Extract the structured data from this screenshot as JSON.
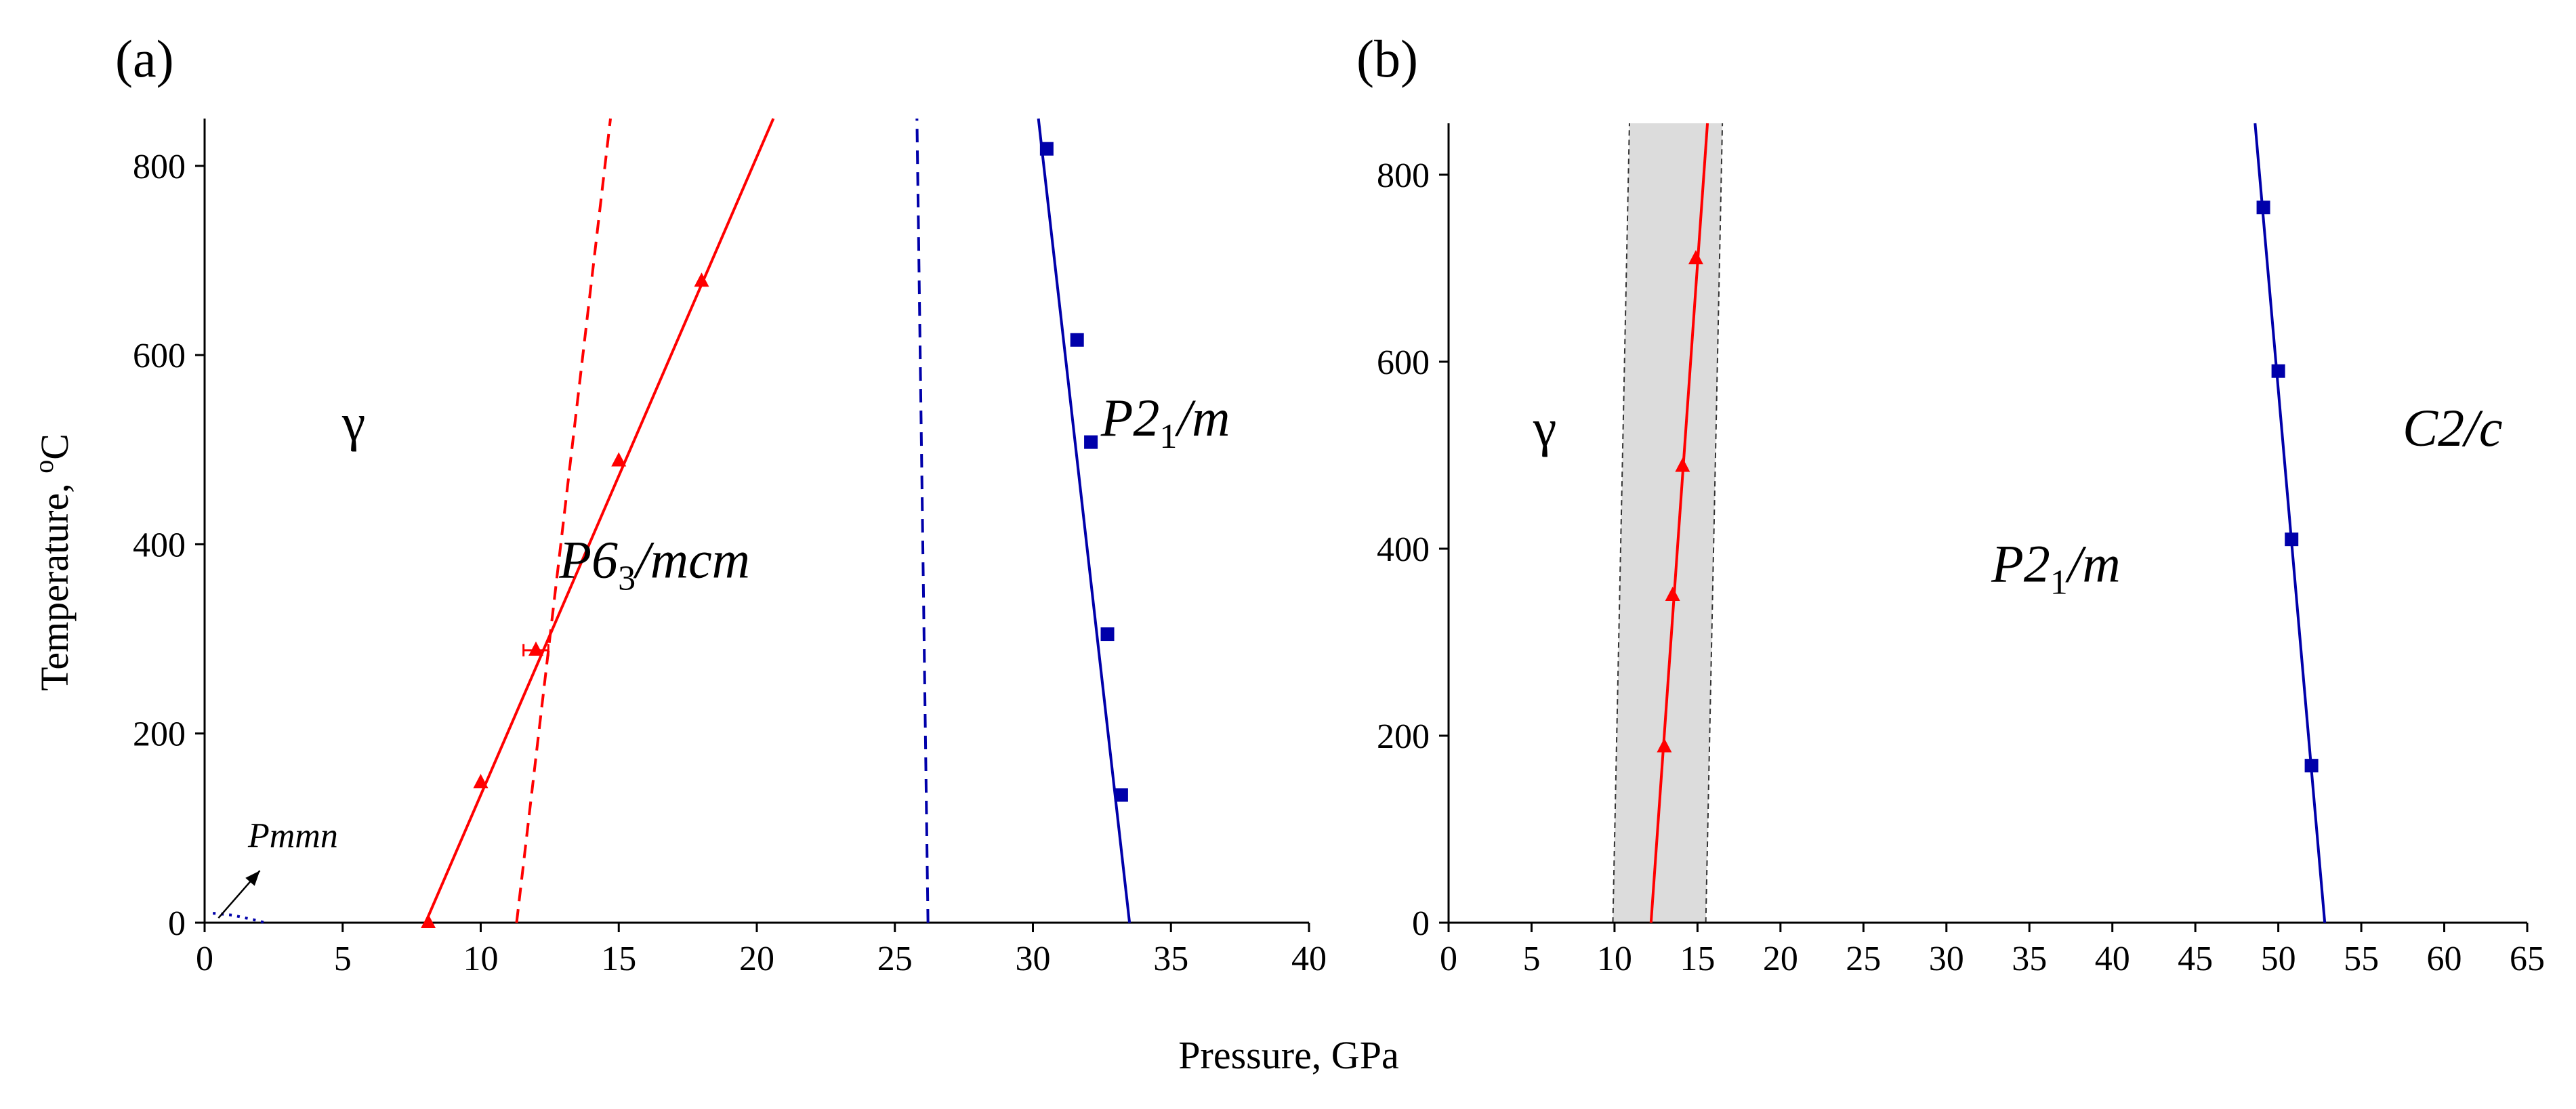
{
  "figure": {
    "xlabel": "Pressure, GPa"
  },
  "chart_data": [
    {
      "type": "line",
      "panel_label": "(a)",
      "xlabel": "Pressure, GPa",
      "ylabel": "Temperature, °C",
      "ylabel_parts": {
        "main": "Temperature, ",
        "sup": "o",
        "unit": "C"
      },
      "xlim": [
        0,
        40
      ],
      "ylim": [
        0,
        850
      ],
      "xticks": [
        0,
        5,
        10,
        15,
        20,
        25,
        30,
        35,
        40
      ],
      "yticks": [
        0,
        200,
        400,
        600,
        800
      ],
      "series": [
        {
          "name": "gamma-P6_3/mcm boundary (fit)",
          "color": "#ff0000",
          "style": "solid",
          "line": [
            [
              8.0,
              0
            ],
            [
              20.6,
              850
            ]
          ],
          "markers": "triangle",
          "points": [
            [
              8.1,
              0
            ],
            [
              10.0,
              148
            ],
            [
              12.0,
              288
            ],
            [
              15.0,
              488
            ],
            [
              18.0,
              678
            ]
          ],
          "error_bar": {
            "x": 12.0,
            "y": 288,
            "xerr": 0.45
          }
        },
        {
          "name": "gamma-P6_3/mcm boundary (dashed)",
          "color": "#ff0000",
          "style": "dashed",
          "line": [
            [
              11.3,
              0
            ],
            [
              14.7,
              850
            ]
          ]
        },
        {
          "name": "P6_3/mcm-P2_1/m boundary (dashed)",
          "color": "#0000aa",
          "style": "dashed",
          "line": [
            [
              26.2,
              0
            ],
            [
              25.8,
              850
            ]
          ]
        },
        {
          "name": "P2_1/m boundary",
          "color": "#0000aa",
          "style": "solid",
          "line": [
            [
              33.5,
              0
            ],
            [
              30.2,
              850
            ]
          ],
          "markers": "square",
          "points": [
            [
              33.2,
              135
            ],
            [
              32.7,
              305
            ],
            [
              32.1,
              508
            ],
            [
              31.6,
              616
            ],
            [
              30.5,
              818
            ]
          ]
        },
        {
          "name": "Pmmn boundary (dotted)",
          "color": "#0000aa",
          "style": "dotted",
          "line": [
            [
              0.3,
              10
            ],
            [
              1.0,
              8
            ],
            [
              1.8,
              3
            ],
            [
              2.2,
              0
            ]
          ]
        }
      ],
      "annotations": [
        {
          "text": "γ",
          "x": 5.4,
          "y": 510
        },
        {
          "text_parts": [
            "P6",
            "3",
            "/mcm"
          ],
          "x": 16.3,
          "y": 365
        },
        {
          "text_parts": [
            "P2",
            "1",
            "/m"
          ],
          "x": 34.8,
          "y": 515
        },
        {
          "text": "Pmmn",
          "x": 3.2,
          "y": 80,
          "arrow_from": [
            2.0,
            55
          ],
          "arrow_to": [
            0.5,
            5
          ]
        }
      ]
    },
    {
      "type": "line",
      "panel_label": "(b)",
      "xlabel": "Pressure, GPa",
      "ylabel": "",
      "xlim": [
        0,
        65
      ],
      "ylim": [
        0,
        855
      ],
      "xticks": [
        0,
        5,
        10,
        15,
        20,
        25,
        30,
        35,
        40,
        45,
        50,
        55,
        60,
        65
      ],
      "yticks": [
        0,
        200,
        400,
        600,
        800
      ],
      "shaded_band": {
        "color": "#dcdcdc",
        "edge_style": "dashed",
        "left": [
          [
            9.9,
            0
          ],
          [
            10.9,
            855
          ]
        ],
        "right": [
          [
            15.5,
            0
          ],
          [
            16.5,
            855
          ]
        ]
      },
      "series": [
        {
          "name": "gamma-P2_1/m boundary",
          "color": "#ff0000",
          "style": "solid",
          "line": [
            [
              12.2,
              0
            ],
            [
              15.6,
              855
            ]
          ],
          "markers": "triangle",
          "points": [
            [
              13.0,
              188
            ],
            [
              13.5,
              350
            ],
            [
              14.1,
              488
            ],
            [
              14.9,
              710
            ]
          ]
        },
        {
          "name": "P2_1/m-C2/c boundary",
          "color": "#0000aa",
          "style": "solid",
          "line": [
            [
              52.8,
              0
            ],
            [
              48.6,
              855
            ]
          ],
          "markers": "square",
          "points": [
            [
              52.0,
              168
            ],
            [
              50.8,
              410
            ],
            [
              50.0,
              590
            ],
            [
              49.1,
              765
            ]
          ]
        }
      ],
      "annotations": [
        {
          "text": "γ",
          "x": 5.8,
          "y": 510
        },
        {
          "text_parts": [
            "P2",
            "1",
            "/m"
          ],
          "x": 36.6,
          "y": 365
        },
        {
          "text_parts": [
            "C2/",
            "c"
          ],
          "x": 60.5,
          "y": 510
        }
      ]
    }
  ]
}
